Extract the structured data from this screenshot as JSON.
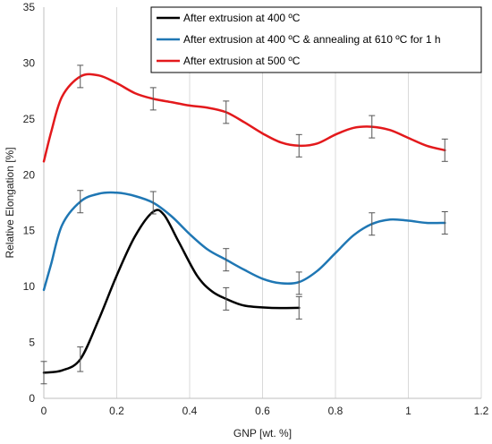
{
  "chart_data": {
    "type": "line",
    "title": "",
    "xlabel": "GNP [wt. %]",
    "ylabel": "Relative Elongation [%]",
    "xlim": [
      0,
      1.2
    ],
    "ylim": [
      0,
      35
    ],
    "xticks": [
      0,
      0.2,
      0.4,
      0.6,
      0.8,
      1,
      1.2
    ],
    "xtick_labels": [
      "0",
      "0.2",
      "0.4",
      "0.6",
      "0.8",
      "1",
      "1.2"
    ],
    "yticks": [
      0,
      5,
      10,
      15,
      20,
      25,
      30,
      35
    ],
    "ytick_labels": [
      "0",
      "5",
      "10",
      "15",
      "20",
      "25",
      "30",
      "35"
    ],
    "grid": "vertical",
    "legend_position": "top-right",
    "series": [
      {
        "name": "After extrusion at 400 ºC",
        "color": "#000000",
        "x": [
          0,
          0.1,
          0.3,
          0.5,
          0.7
        ],
        "y": [
          2.3,
          3.5,
          16.8,
          8.9,
          8.1
        ],
        "err": [
          1.0,
          1.1,
          1.0,
          1.0,
          1.0
        ],
        "show_error_bar": [
          true,
          true,
          false,
          true,
          true
        ],
        "curve": [
          [
            0,
            2.3
          ],
          [
            0.05,
            2.5
          ],
          [
            0.1,
            3.5
          ],
          [
            0.15,
            7
          ],
          [
            0.2,
            11
          ],
          [
            0.25,
            14.5
          ],
          [
            0.3,
            16.7
          ],
          [
            0.33,
            16.4
          ],
          [
            0.37,
            14
          ],
          [
            0.42,
            11
          ],
          [
            0.46,
            9.6
          ],
          [
            0.5,
            8.9
          ],
          [
            0.55,
            8.3
          ],
          [
            0.62,
            8.1
          ],
          [
            0.7,
            8.1
          ]
        ]
      },
      {
        "name": "After extrusion at 400 ºC & annealing at 610 ºC for 1 h",
        "color": "#1f77b4",
        "x": [
          0,
          0.1,
          0.3,
          0.5,
          0.7,
          0.9,
          1.1
        ],
        "y": [
          9.7,
          17.6,
          17.5,
          12.4,
          10.3,
          15.6,
          15.7
        ],
        "err": [
          1.0,
          1.0,
          1.0,
          1.0,
          1.0,
          1.0,
          1.0
        ],
        "show_error_bar": [
          false,
          true,
          true,
          true,
          true,
          true,
          true
        ],
        "curve": [
          [
            0,
            9.7
          ],
          [
            0.02,
            12
          ],
          [
            0.05,
            15.5
          ],
          [
            0.1,
            17.6
          ],
          [
            0.15,
            18.3
          ],
          [
            0.2,
            18.4
          ],
          [
            0.25,
            18.1
          ],
          [
            0.3,
            17.5
          ],
          [
            0.35,
            16.3
          ],
          [
            0.4,
            14.7
          ],
          [
            0.45,
            13.3
          ],
          [
            0.5,
            12.4
          ],
          [
            0.55,
            11.5
          ],
          [
            0.6,
            10.7
          ],
          [
            0.65,
            10.3
          ],
          [
            0.7,
            10.4
          ],
          [
            0.75,
            11.4
          ],
          [
            0.8,
            13.0
          ],
          [
            0.85,
            14.6
          ],
          [
            0.9,
            15.6
          ],
          [
            0.95,
            16.0
          ],
          [
            1.0,
            15.9
          ],
          [
            1.05,
            15.7
          ],
          [
            1.1,
            15.7
          ]
        ]
      },
      {
        "name": "After extrusion at 500 ºC",
        "color": "#e3191c",
        "x": [
          0,
          0.1,
          0.3,
          0.5,
          0.7,
          0.9,
          1.1
        ],
        "y": [
          21.2,
          28.8,
          26.8,
          25.6,
          22.6,
          24.3,
          22.2
        ],
        "err": [
          1.0,
          1.0,
          1.0,
          1.0,
          1.0,
          1.0,
          1.0
        ],
        "show_error_bar": [
          false,
          true,
          true,
          true,
          true,
          true,
          true
        ],
        "curve": [
          [
            0,
            21.2
          ],
          [
            0.02,
            23.8
          ],
          [
            0.05,
            27.0
          ],
          [
            0.1,
            28.8
          ],
          [
            0.15,
            28.9
          ],
          [
            0.2,
            28.2
          ],
          [
            0.25,
            27.3
          ],
          [
            0.3,
            26.8
          ],
          [
            0.35,
            26.5
          ],
          [
            0.4,
            26.2
          ],
          [
            0.45,
            26.0
          ],
          [
            0.5,
            25.6
          ],
          [
            0.55,
            24.7
          ],
          [
            0.6,
            23.7
          ],
          [
            0.65,
            22.9
          ],
          [
            0.7,
            22.6
          ],
          [
            0.75,
            22.8
          ],
          [
            0.8,
            23.6
          ],
          [
            0.85,
            24.2
          ],
          [
            0.9,
            24.3
          ],
          [
            0.95,
            24.0
          ],
          [
            1.0,
            23.3
          ],
          [
            1.05,
            22.6
          ],
          [
            1.1,
            22.2
          ]
        ]
      }
    ]
  }
}
